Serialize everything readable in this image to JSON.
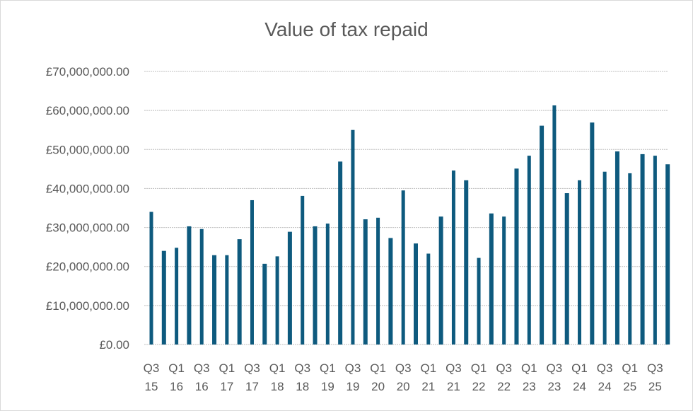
{
  "chart_data": {
    "type": "bar",
    "title": "Value of tax repaid",
    "xlabel": "",
    "ylabel": "",
    "ylim": [
      0,
      70000000
    ],
    "yticks": [
      0,
      10000000,
      20000000,
      30000000,
      40000000,
      50000000,
      60000000,
      70000000
    ],
    "ytick_labels": [
      "£0.00",
      "£10,000,000.00",
      "£20,000,000.00",
      "£30,000,000.00",
      "£40,000,000.00",
      "£50,000,000.00",
      "£60,000,000.00",
      "£70,000,000.00"
    ],
    "grid": true,
    "bar_color": "#0E5A7E",
    "categories": [
      "Q3 15",
      "Q4 15",
      "Q1 16",
      "Q2 16",
      "Q3 16",
      "Q4 16",
      "Q1 17",
      "Q2 17",
      "Q3 17",
      "Q4 17",
      "Q1 18",
      "Q2 18",
      "Q3 18",
      "Q4 18",
      "Q1 19",
      "Q2 19",
      "Q3 19",
      "Q4 19",
      "Q1 20",
      "Q2 20",
      "Q3 20",
      "Q4 20",
      "Q1 21",
      "Q2 21",
      "Q3 21",
      "Q4 21",
      "Q1 22",
      "Q2 22",
      "Q3 22",
      "Q4 22",
      "Q1 23",
      "Q2 23",
      "Q3 23",
      "Q4 23",
      "Q1 24",
      "Q2 24",
      "Q3 24",
      "Q4 24",
      "Q1 25",
      "Q2 25",
      "Q3 25",
      "Q4 25"
    ],
    "x_tick_labels": [
      [
        "Q3",
        "15"
      ],
      [
        "Q1",
        "16"
      ],
      [
        "Q3",
        "16"
      ],
      [
        "Q1",
        "17"
      ],
      [
        "Q3",
        "17"
      ],
      [
        "Q1",
        "18"
      ],
      [
        "Q3",
        "18"
      ],
      [
        "Q1",
        "19"
      ],
      [
        "Q3",
        "19"
      ],
      [
        "Q1",
        "20"
      ],
      [
        "Q3",
        "20"
      ],
      [
        "Q1",
        "21"
      ],
      [
        "Q3",
        "21"
      ],
      [
        "Q1",
        "22"
      ],
      [
        "Q3",
        "22"
      ],
      [
        "Q1",
        "23"
      ],
      [
        "Q3",
        "23"
      ],
      [
        "Q1",
        "24"
      ],
      [
        "Q3",
        "24"
      ],
      [
        "Q1",
        "25"
      ],
      [
        "Q3",
        "25"
      ]
    ],
    "values": [
      34000000,
      24000000,
      24800000,
      30300000,
      29600000,
      22900000,
      22900000,
      27000000,
      37000000,
      20700000,
      22600000,
      28900000,
      38100000,
      30300000,
      31000000,
      46900000,
      55000000,
      32100000,
      32500000,
      27300000,
      39500000,
      25900000,
      23300000,
      32800000,
      44600000,
      42100000,
      22200000,
      33600000,
      32800000,
      45100000,
      48400000,
      56100000,
      61300000,
      38800000,
      42100000,
      56900000,
      44300000,
      49500000,
      43900000,
      48800000,
      48400000,
      46200000
    ]
  }
}
